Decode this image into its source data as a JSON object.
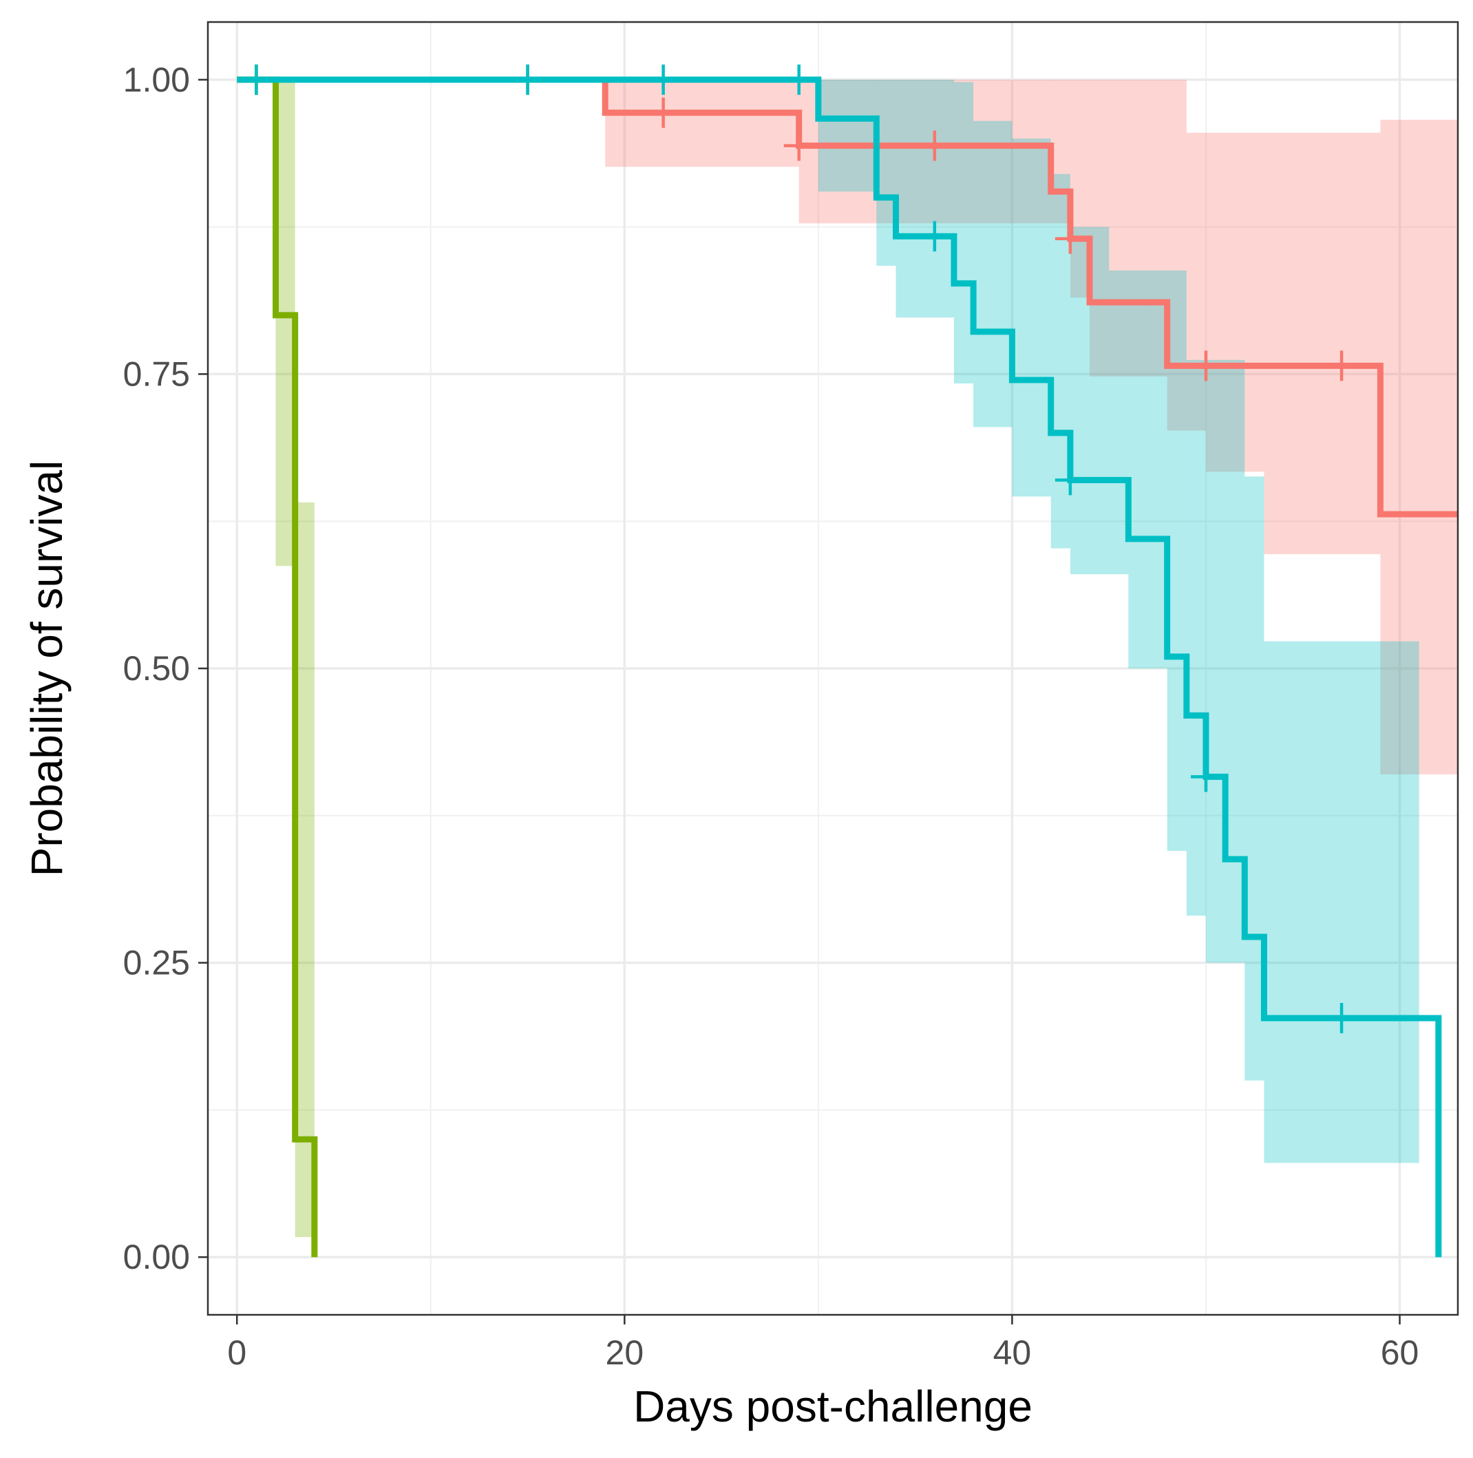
{
  "chart_data": {
    "type": "line",
    "subtype": "kaplan-meier-step",
    "xlabel": "Days post-challenge",
    "ylabel": "Probability of survival",
    "xlim": [
      -1.5,
      63
    ],
    "ylim": [
      -0.049,
      1.049
    ],
    "x_ticks": [
      0,
      20,
      40,
      60
    ],
    "x_tick_labels": [
      "0",
      "20",
      "40",
      "60"
    ],
    "y_ticks": [
      0,
      0.25,
      0.5,
      0.75,
      1
    ],
    "y_tick_labels": [
      "0.00",
      "0.25",
      "0.50",
      "0.75",
      "1.00"
    ],
    "grid": true,
    "legend": "none",
    "series": [
      {
        "color": "#F8766D",
        "steps": [
          [
            19,
            1.0
          ],
          [
            19,
            0.972
          ],
          [
            29,
            0.972
          ],
          [
            29,
            0.944
          ],
          [
            42,
            0.944
          ],
          [
            42,
            0.905
          ],
          [
            43,
            0.905
          ],
          [
            43,
            0.865
          ],
          [
            44,
            0.865
          ],
          [
            44,
            0.811
          ],
          [
            48,
            0.811
          ],
          [
            48,
            0.757
          ],
          [
            59,
            0.757
          ],
          [
            59,
            0.631
          ],
          [
            63,
            0.631
          ]
        ],
        "ci": [
          [
            19,
            0.926,
            1.0
          ],
          [
            29,
            0.878,
            1.0
          ],
          [
            42,
            0.878,
            1.0
          ],
          [
            43,
            0.815,
            1.0
          ],
          [
            44,
            0.748,
            1.0
          ],
          [
            48,
            0.702,
            1.0
          ],
          [
            49,
            0.702,
            0.955
          ],
          [
            50,
            0.667,
            0.955
          ],
          [
            53,
            0.597,
            0.955
          ],
          [
            59,
            0.41,
            0.966
          ],
          [
            63,
            0.41,
            0.966
          ]
        ],
        "censored": [
          [
            1,
            1.0
          ],
          [
            15,
            1.0
          ],
          [
            22,
            0.972
          ],
          [
            29,
            0.944
          ],
          [
            36,
            0.944
          ],
          [
            43,
            0.865
          ],
          [
            50,
            0.757
          ],
          [
            57,
            0.757
          ]
        ]
      },
      {
        "color": "#7CAE00",
        "steps": [
          [
            0,
            1.0
          ],
          [
            2,
            1.0
          ],
          [
            2,
            0.8
          ],
          [
            3,
            0.8
          ],
          [
            3,
            0.1
          ],
          [
            4,
            0.1
          ],
          [
            4,
            0.0
          ]
        ],
        "ci": [
          [
            2,
            0.587,
            1.0
          ],
          [
            3,
            0.641,
            0.587
          ],
          [
            3,
            0.017,
            0.641
          ],
          [
            4,
            0.017,
            0.641
          ]
        ],
        "censored": [
          [
            1,
            1.0
          ]
        ]
      },
      {
        "color": "#00BFC4",
        "steps": [
          [
            0,
            1.0
          ],
          [
            30,
            1.0
          ],
          [
            30,
            0.967
          ],
          [
            33,
            0.967
          ],
          [
            33,
            0.9
          ],
          [
            34,
            0.9
          ],
          [
            34,
            0.867
          ],
          [
            37,
            0.867
          ],
          [
            37,
            0.827
          ],
          [
            38,
            0.827
          ],
          [
            38,
            0.786
          ],
          [
            40,
            0.786
          ],
          [
            40,
            0.745
          ],
          [
            42,
            0.745
          ],
          [
            42,
            0.7
          ],
          [
            43,
            0.7
          ],
          [
            43,
            0.66
          ],
          [
            46,
            0.66
          ],
          [
            46,
            0.61
          ],
          [
            48,
            0.61
          ],
          [
            48,
            0.51
          ],
          [
            49,
            0.51
          ],
          [
            49,
            0.46
          ],
          [
            50,
            0.46
          ],
          [
            50,
            0.408
          ],
          [
            51,
            0.408
          ],
          [
            51,
            0.338
          ],
          [
            52,
            0.338
          ],
          [
            52,
            0.272
          ],
          [
            53,
            0.272
          ],
          [
            53,
            0.203
          ],
          [
            62,
            0.203
          ],
          [
            62,
            0.0
          ]
        ],
        "ci": [
          [
            30,
            0.905,
            1.0
          ],
          [
            33,
            0.842,
            1.0
          ],
          [
            34,
            0.798,
            1.0
          ],
          [
            37,
            0.742,
            0.998
          ],
          [
            38,
            0.705,
            0.965
          ],
          [
            40,
            0.646,
            0.95
          ],
          [
            42,
            0.602,
            0.92
          ],
          [
            43,
            0.58,
            0.875
          ],
          [
            45,
            0.58,
            0.838
          ],
          [
            46,
            0.5,
            0.838
          ],
          [
            47,
            0.5,
            0.838
          ],
          [
            48,
            0.345,
            0.838
          ],
          [
            49,
            0.29,
            0.762
          ],
          [
            50,
            0.25,
            0.762
          ],
          [
            52,
            0.15,
            0.663
          ],
          [
            53,
            0.08,
            0.523
          ],
          [
            61,
            0.08,
            0.523
          ]
        ],
        "censored": [
          [
            1,
            1.0
          ],
          [
            15,
            1.0
          ],
          [
            22,
            1.0
          ],
          [
            29,
            1.0
          ],
          [
            36,
            0.867
          ],
          [
            43,
            0.66
          ],
          [
            50,
            0.408
          ],
          [
            57,
            0.203
          ]
        ]
      }
    ]
  }
}
